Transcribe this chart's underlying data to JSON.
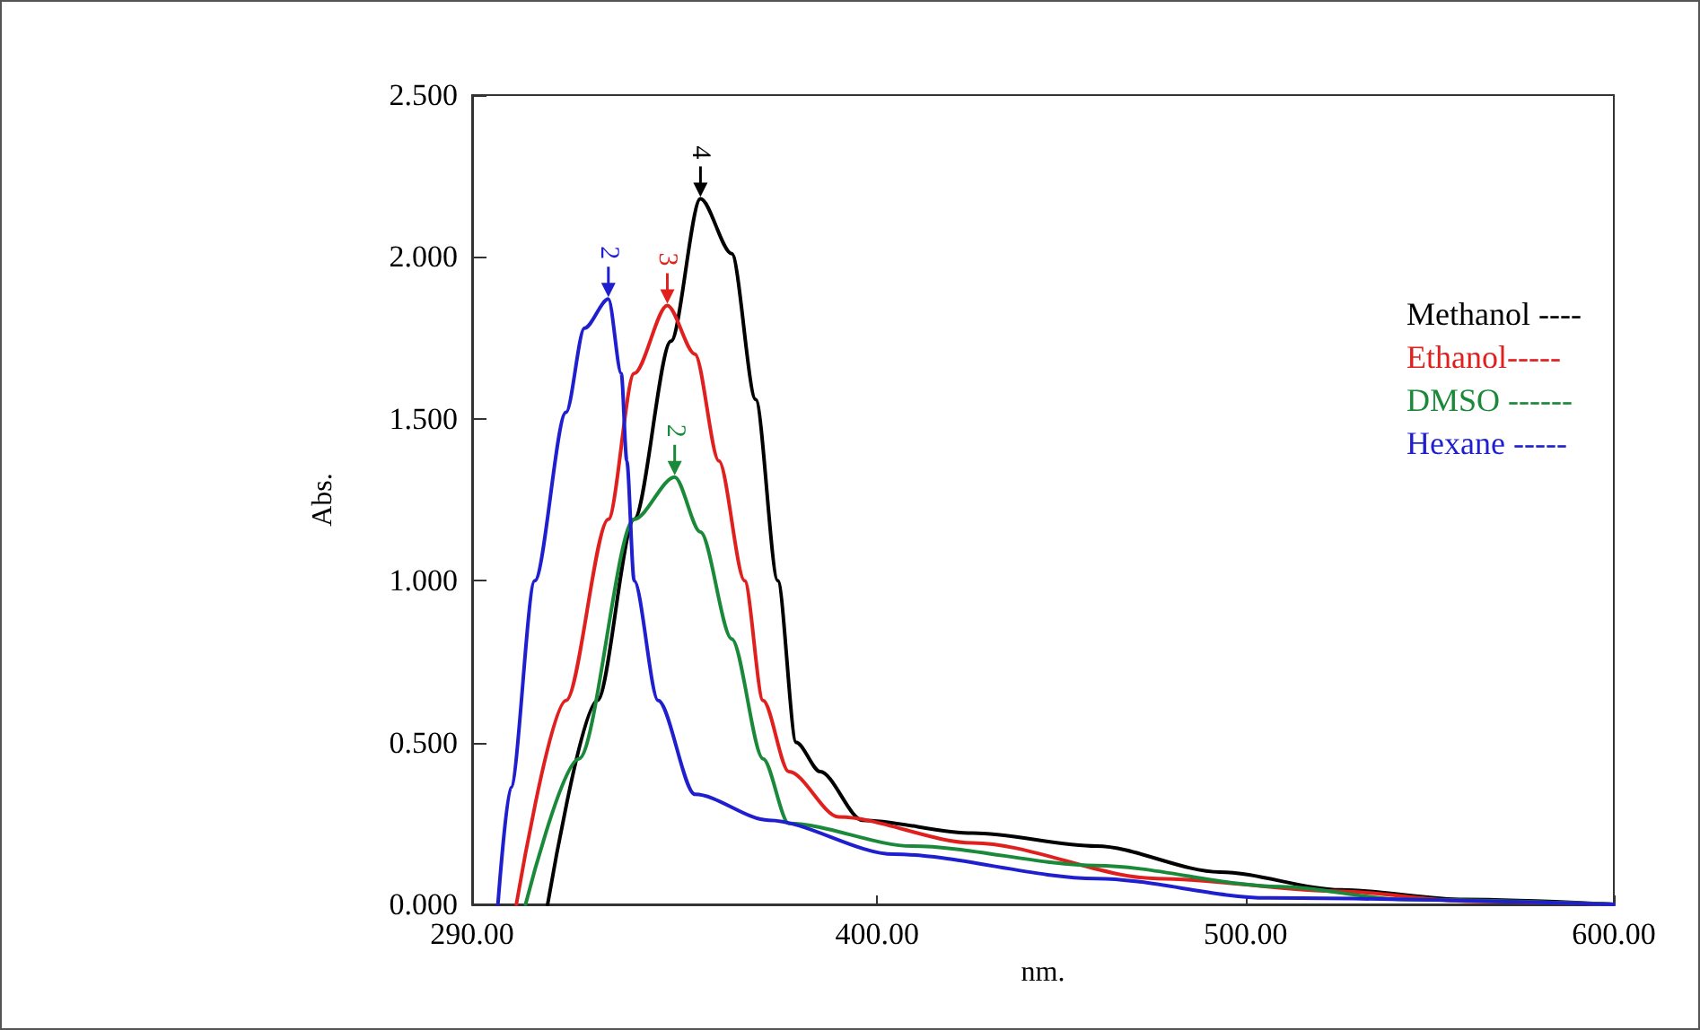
{
  "chart_data": {
    "type": "line",
    "xlabel": "nm.",
    "ylabel": "Abs.",
    "xlim": [
      290,
      600
    ],
    "xticks": [
      {
        "value": 290,
        "label": "290.00"
      },
      {
        "value": 400,
        "label": "400.00"
      },
      {
        "value": 500,
        "label": "500.00"
      },
      {
        "value": 600,
        "label": "600.00"
      }
    ],
    "ylim": [
      0,
      2.5
    ],
    "yticks": [
      {
        "value": 0,
        "label": "0.000"
      },
      {
        "value": 0.5,
        "label": "0.500"
      },
      {
        "value": 1,
        "label": "1.000"
      },
      {
        "value": 1.5,
        "label": "1.500"
      },
      {
        "value": 2,
        "label": "2.000"
      },
      {
        "value": 2.5,
        "label": "2.500"
      }
    ],
    "grid": false,
    "legend": "top right",
    "marker": "none",
    "line_style": "solid",
    "series": [
      {
        "name": "Methanol ----",
        "color": "#000000",
        "x": [
          310.5,
          324,
          334,
          344,
          352,
          360.5,
          367,
          373,
          378,
          384.5,
          396,
          426,
          459.5,
          493,
          526,
          559.5,
          600
        ],
        "values": [
          0,
          0.63,
          1.19,
          1.74,
          2.18,
          2.01,
          1.56,
          1.0,
          0.5,
          0.41,
          0.26,
          0.22,
          0.18,
          0.1,
          0.045,
          0.015,
          0
        ]
      },
      {
        "name": "Ethanol-----",
        "color": "#e0201e",
        "x": [
          302,
          315.5,
          327,
          334,
          343,
          350.5,
          357,
          364,
          369,
          376,
          389.5,
          426,
          476,
          526,
          560,
          600
        ],
        "values": [
          0,
          0.63,
          1.19,
          1.64,
          1.85,
          1.7,
          1.37,
          1.0,
          0.63,
          0.41,
          0.27,
          0.19,
          0.08,
          0.04,
          0.01,
          0
        ]
      },
      {
        "name": "DMSO ------",
        "color": "#1a8a3a",
        "x": [
          304.5,
          319,
          334,
          345,
          352,
          360.5,
          369,
          376,
          409.5,
          459.5,
          509.5,
          543,
          600
        ],
        "values": [
          0,
          0.45,
          1.19,
          1.32,
          1.15,
          0.82,
          0.45,
          0.25,
          0.18,
          0.12,
          0.055,
          0.015,
          0
        ]
      },
      {
        "name": "Hexane -----",
        "color": "#1f1fd0",
        "x": [
          297,
          300.5,
          307,
          315.5,
          320.5,
          327,
          330.5,
          332,
          334,
          340.5,
          350.5,
          370.5,
          404.5,
          459.5,
          506,
          600
        ],
        "values": [
          0,
          0.36,
          1.0,
          1.52,
          1.78,
          1.87,
          1.64,
          1.37,
          1.0,
          0.63,
          0.34,
          0.26,
          0.155,
          0.08,
          0.02,
          0
        ]
      }
    ],
    "annotations": [
      {
        "text": "4",
        "x": 352,
        "y": 2.18
      },
      {
        "text": "3",
        "x": 343,
        "y": 1.85
      },
      {
        "text": "2",
        "x": 345,
        "y": 1.32
      },
      {
        "text": "2",
        "x": 327,
        "y": 1.87
      }
    ]
  }
}
